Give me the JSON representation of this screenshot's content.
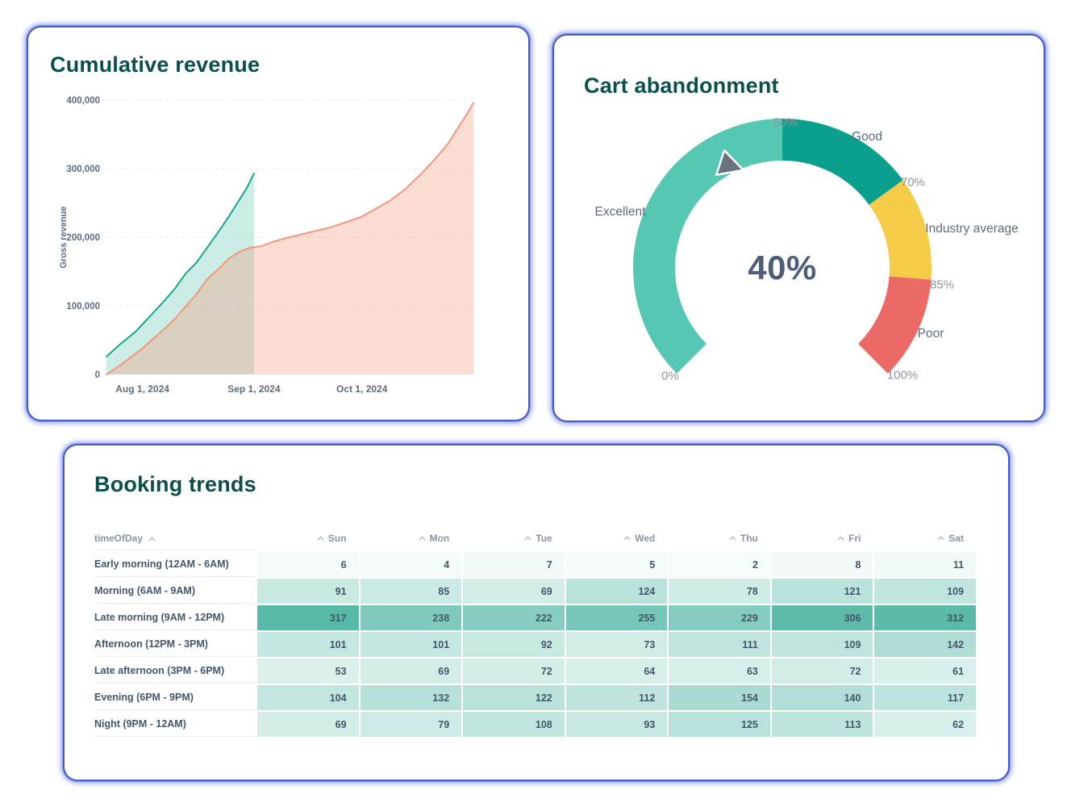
{
  "chart_data": [
    {
      "type": "area",
      "title": "Cumulative revenue",
      "ylabel": "Gross revenue",
      "ylim": [
        0,
        400000
      ],
      "x_domain_days": 102,
      "grid": "dashed-horizontal",
      "legend": "none",
      "y_ticks": [
        {
          "label": "0",
          "value": 0
        },
        {
          "label": "100,000",
          "value": 100000
        },
        {
          "label": "200,000",
          "value": 200000
        },
        {
          "label": "300,000",
          "value": 300000
        },
        {
          "label": "400,000",
          "value": 400000
        }
      ],
      "x_ticks": [
        {
          "label": "Aug 1, 2024",
          "day": 10
        },
        {
          "label": "Sep 1, 2024",
          "day": 41
        },
        {
          "label": "Oct 1, 2024",
          "day": 71
        }
      ],
      "series": [
        {
          "name": "teal-period",
          "line_color": "#17a78c",
          "fill_color": "rgba(23,167,140,0.22)",
          "points": [
            [
              0,
              26000
            ],
            [
              4,
              45000
            ],
            [
              8,
              62000
            ],
            [
              10,
              73000
            ],
            [
              13,
              90000
            ],
            [
              16,
              107000
            ],
            [
              19,
              125000
            ],
            [
              22,
              147000
            ],
            [
              25,
              163000
            ],
            [
              28,
              185000
            ],
            [
              31,
              207000
            ],
            [
              34,
              230000
            ],
            [
              37,
              255000
            ],
            [
              39,
              272000
            ],
            [
              41,
              293000
            ]
          ]
        },
        {
          "name": "salmon-period",
          "line_color": "#f4977a",
          "fill_color": "rgba(244,151,122,0.33)",
          "points": [
            [
              0,
              0
            ],
            [
              2,
              7000
            ],
            [
              5,
              18000
            ],
            [
              8,
              30000
            ],
            [
              10,
              38000
            ],
            [
              13,
              52000
            ],
            [
              16,
              66000
            ],
            [
              19,
              81000
            ],
            [
              22,
              99000
            ],
            [
              25,
              117000
            ],
            [
              28,
              139000
            ],
            [
              31,
              153000
            ],
            [
              34,
              169000
            ],
            [
              37,
              179000
            ],
            [
              40,
              185000
            ],
            [
              43,
              187000
            ],
            [
              46,
              193000
            ],
            [
              50,
              199000
            ],
            [
              54,
              204000
            ],
            [
              58,
              209000
            ],
            [
              62,
              214000
            ],
            [
              66,
              221000
            ],
            [
              71,
              230000
            ],
            [
              75,
              242000
            ],
            [
              79,
              254000
            ],
            [
              83,
              270000
            ],
            [
              87,
              290000
            ],
            [
              91,
              312000
            ],
            [
              95,
              337000
            ],
            [
              98,
              362000
            ],
            [
              100,
              378000
            ],
            [
              102,
              396000
            ]
          ]
        }
      ]
    },
    {
      "type": "gauge",
      "title": "Cart abandonment",
      "value": 40,
      "value_label": "40%",
      "min": 0,
      "max": 100,
      "sweep_deg": 270,
      "ticks": [
        "0%",
        "50%",
        "70%",
        "85%",
        "100%"
      ],
      "tick_values": [
        0,
        50,
        70,
        85,
        100
      ],
      "segments": [
        {
          "label": "Excellent",
          "from": 0,
          "to": 50,
          "color": "#55c7b2"
        },
        {
          "label": "Good",
          "from": 50,
          "to": 70,
          "color": "#0aa08d"
        },
        {
          "label": "Industry average",
          "from": 70,
          "to": 85,
          "color": "#f5cb47"
        },
        {
          "label": "Poor",
          "from": 85,
          "to": 100,
          "color": "#ec6a66"
        }
      ],
      "needle_color": "#6a7380"
    },
    {
      "type": "heatmap",
      "title": "Booking trends",
      "row_header": "timeOfDay",
      "columns": [
        "Sun",
        "Mon",
        "Tue",
        "Wed",
        "Thu",
        "Fri",
        "Sat"
      ],
      "rows": [
        {
          "label": "Early morning (12AM - 6AM)",
          "values": [
            6,
            4,
            7,
            5,
            2,
            8,
            11
          ]
        },
        {
          "label": "Morning (6AM - 9AM)",
          "values": [
            91,
            85,
            69,
            124,
            78,
            121,
            109
          ]
        },
        {
          "label": "Late morning (9AM - 12PM)",
          "values": [
            317,
            238,
            222,
            255,
            229,
            306,
            312
          ]
        },
        {
          "label": "Afternoon (12PM - 3PM)",
          "values": [
            101,
            101,
            92,
            73,
            111,
            109,
            142
          ]
        },
        {
          "label": "Late afternoon (3PM - 6PM)",
          "values": [
            53,
            69,
            72,
            64,
            63,
            72,
            61
          ]
        },
        {
          "label": "Evening (6PM - 9PM)",
          "values": [
            104,
            132,
            122,
            112,
            154,
            140,
            117
          ]
        },
        {
          "label": "Night (9PM - 12AM)",
          "values": [
            69,
            79,
            108,
            93,
            125,
            113,
            62
          ]
        }
      ],
      "color_scale": {
        "min": 0,
        "max": 317,
        "min_color": "#f7fcfb",
        "max_color": "#58b9a9"
      }
    }
  ]
}
